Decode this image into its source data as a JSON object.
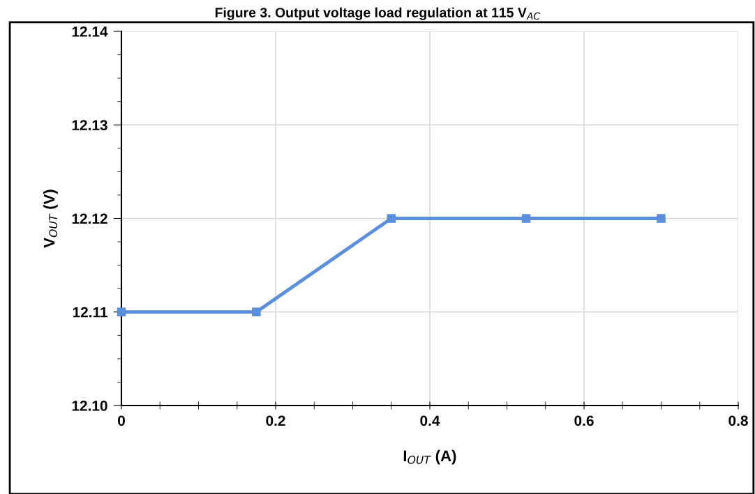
{
  "chart_data": {
    "type": "line",
    "title": "Figure 3. Output voltage load regulation at 115 V$_{AC}$",
    "xlabel": "I$_{OUT}$ (A)",
    "ylabel": "V$_{OUT}$ (V)",
    "x": [
      0,
      0.175,
      0.35,
      0.525,
      0.7
    ],
    "series": [
      {
        "color": "#5b8fdc",
        "values": [
          12.11,
          12.11,
          12.12,
          12.12,
          12.12
        ]
      }
    ],
    "xlim": [
      0,
      0.8
    ],
    "xticks": [
      0,
      0.2,
      0.4,
      0.6,
      0.8
    ],
    "ylim": [
      12.1,
      12.14
    ],
    "yticks": [
      {
        "value": 12.1,
        "label": "12.10"
      },
      {
        "value": 12.11,
        "label": "12.11"
      },
      {
        "value": 12.12,
        "label": "12.12"
      },
      {
        "value": 12.13,
        "label": "12.13"
      },
      {
        "value": 12.14,
        "label": "12.14"
      }
    ],
    "grid": true,
    "marker": "square",
    "line_style": "solid"
  }
}
